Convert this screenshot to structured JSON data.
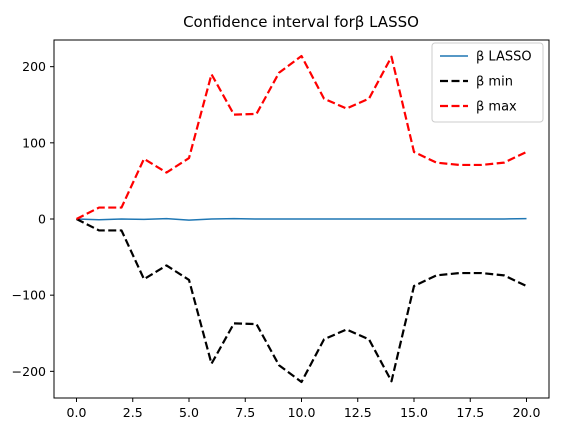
{
  "chart_data": {
    "type": "line",
    "title": "Confidence interval forβ LASSO",
    "xlabel": "",
    "ylabel": "",
    "xlim": [
      -1,
      21
    ],
    "ylim": [
      -235,
      235
    ],
    "x_ticks": [
      0.0,
      2.5,
      5.0,
      7.5,
      10.0,
      12.5,
      15.0,
      17.5,
      20.0
    ],
    "x_tick_labels": [
      "0.0",
      "2.5",
      "5.0",
      "7.5",
      "10.0",
      "12.5",
      "15.0",
      "17.5",
      "20.0"
    ],
    "y_ticks": [
      -200,
      -100,
      0,
      100,
      200
    ],
    "y_tick_labels": [
      "−200",
      "−100",
      "0",
      "100",
      "200"
    ],
    "grid": false,
    "legend_position": "top-right",
    "x": [
      0,
      1,
      2,
      3,
      4,
      5,
      6,
      7,
      8,
      9,
      10,
      11,
      12,
      13,
      14,
      15,
      16,
      17,
      18,
      19,
      20
    ],
    "series": [
      {
        "name": "β LASSO",
        "color": "#1f77b4",
        "style": "solid",
        "values": [
          0,
          -1,
          0,
          -0.5,
          0.5,
          -1.5,
          0,
          0.5,
          0,
          0,
          0,
          0,
          0,
          0,
          0,
          0,
          0,
          0,
          0,
          0,
          0.5
        ]
      },
      {
        "name": "β min",
        "color": "#000000",
        "style": "dashed",
        "values": [
          0,
          -15,
          -15,
          -79,
          -61,
          -80,
          -190,
          -137,
          -138,
          -192,
          -214,
          -158,
          -145,
          -158,
          -213,
          -88,
          -74,
          -71,
          -71,
          -74,
          -88
        ]
      },
      {
        "name": "β max",
        "color": "#ff0000",
        "style": "dashed",
        "values": [
          0,
          15,
          15,
          79,
          61,
          80,
          190,
          137,
          138,
          192,
          214,
          158,
          145,
          158,
          213,
          88,
          74,
          71,
          71,
          74,
          88
        ]
      }
    ]
  }
}
